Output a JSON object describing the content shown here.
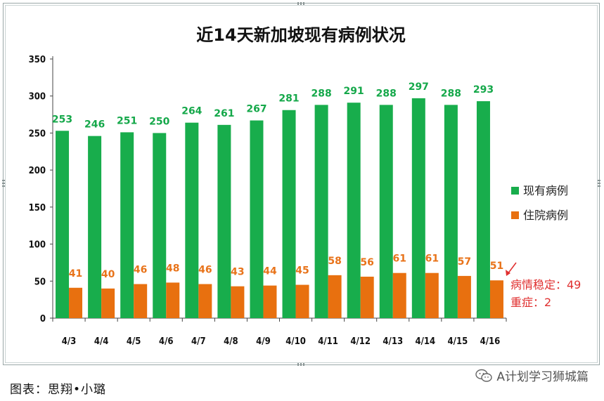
{
  "chart_data": {
    "type": "bar",
    "title": "近14天新加坡现有病例状况",
    "categories": [
      "4/3",
      "4/4",
      "4/5",
      "4/6",
      "4/7",
      "4/8",
      "4/9",
      "4/10",
      "4/11",
      "4/12",
      "4/13",
      "4/14",
      "4/15",
      "4/16"
    ],
    "series": [
      {
        "name": "现有病例",
        "color": "#18ad4c",
        "values": [
          253,
          246,
          251,
          250,
          264,
          261,
          267,
          281,
          288,
          291,
          288,
          297,
          288,
          293
        ]
      },
      {
        "name": "住院病例",
        "color": "#e8700f",
        "values": [
          41,
          40,
          46,
          48,
          46,
          43,
          44,
          45,
          58,
          56,
          61,
          61,
          57,
          51
        ]
      }
    ],
    "ylim": [
      0,
      350
    ],
    "yticks": [
      0,
      50,
      100,
      150,
      200,
      250,
      300,
      350
    ],
    "grid": false,
    "legend_position": "right",
    "annotations": [
      "病情稳定：49",
      "重症：2"
    ]
  },
  "caption": "图表：思翔•小璐",
  "watermark": "A计划学习狮城篇"
}
